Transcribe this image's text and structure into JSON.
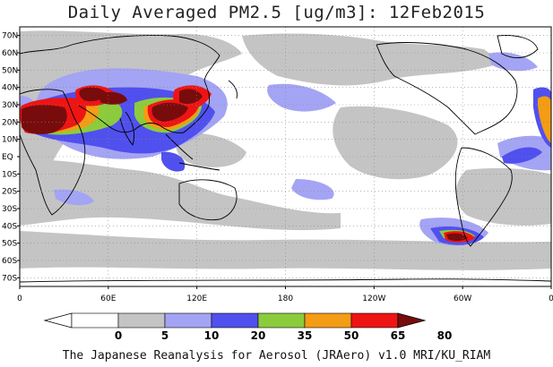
{
  "title": "Daily Averaged PM2.5 [ug/m3]: 12Feb2015",
  "footer": "The Japanese Reanalysis for Aerosol (JRAero) v1.0 MRI/KU_RIAM",
  "lat_labels": [
    "70N",
    "60N",
    "50N",
    "40N",
    "30N",
    "20N",
    "10N",
    "EQ",
    "10S",
    "20S",
    "30S",
    "40S",
    "50S",
    "60S",
    "70S"
  ],
  "lat_values": [
    70,
    60,
    50,
    40,
    30,
    20,
    10,
    0,
    -10,
    -20,
    -30,
    -40,
    -50,
    -60,
    -70
  ],
  "lon_labels": [
    {
      "text": "0",
      "lon": 0
    },
    {
      "text": "60E",
      "lon": 60
    },
    {
      "text": "120E",
      "lon": 120
    },
    {
      "text": "180",
      "lon": 180
    },
    {
      "text": "120W",
      "lon": 240
    },
    {
      "text": "60W",
      "lon": 300
    },
    {
      "text": "0",
      "lon": 360
    }
  ],
  "colorbar": {
    "levels": [
      "0",
      "5",
      "10",
      "20",
      "35",
      "50",
      "65",
      "80"
    ],
    "colors": [
      "#ffffff",
      "#c4c4c4",
      "#a4a4f4",
      "#5050ee",
      "#8ccc3c",
      "#f49c14",
      "#ee1414",
      "#780c0c"
    ]
  },
  "colors": {
    "c1": "#c4c4c4",
    "c2": "#a4a4f4",
    "c3": "#5050ee",
    "c4": "#8ccc3c",
    "c5": "#f49c14",
    "c6": "#ee1414",
    "c7": "#780c0c"
  }
}
